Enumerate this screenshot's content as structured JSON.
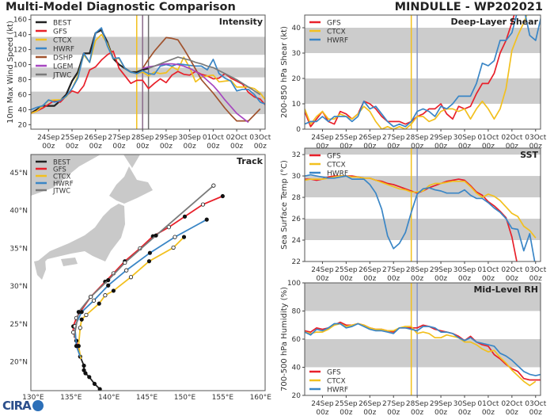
{
  "title": "Multi-Model Diagnostic Comparison",
  "storm": "MINDULLE - WP202021",
  "logo_text": "CIRA",
  "colors": {
    "BEST": "#222222",
    "GFS": "#e8202a",
    "CTCX": "#f2c01e",
    "HWRF": "#3a86c6",
    "DSHP": "#a0522d",
    "LGEM": "#a646c0",
    "JTWC": "#7a7a7a",
    "band": "#cccccc",
    "land": "#c9c9c9"
  },
  "time_axis": {
    "first": "2021-09-23 06z",
    "interval_hours": 6,
    "xlim": [
      "2021-09-23 06z",
      "2021-10-03 05z"
    ],
    "ticks": [
      {
        "date": "2021-09-24 00z",
        "label": "24Sep",
        "sub": "00z"
      },
      {
        "date": "2021-09-25 00z",
        "label": "25Sep",
        "sub": "00z"
      },
      {
        "date": "2021-09-26 00z",
        "label": "26Sep",
        "sub": "00z"
      },
      {
        "date": "2021-09-27 00z",
        "label": "27Sep",
        "sub": "00z"
      },
      {
        "date": "2021-09-28 00z",
        "label": "28Sep",
        "sub": "00z"
      },
      {
        "date": "2021-09-29 00z",
        "label": "29Sep",
        "sub": "00z"
      },
      {
        "date": "2021-09-30 00z",
        "label": "30Sep",
        "sub": "00z"
      },
      {
        "date": "2021-10-01 00z",
        "label": "01Oct",
        "sub": "00z"
      },
      {
        "date": "2021-10-02 00z",
        "label": "02Oct",
        "sub": "00z"
      },
      {
        "date": "2021-10-03 00z",
        "label": "03Oct",
        "sub": "00z"
      }
    ]
  },
  "chart_data": [
    {
      "id": "intensity",
      "type": "line",
      "title": "Intensity",
      "ylabel": "10m Max Wind Speed (kt)",
      "ylim": [
        14,
        166
      ],
      "yticks": [
        20,
        40,
        60,
        80,
        100,
        120,
        140,
        160
      ],
      "bands": [
        [
          34,
          64
        ],
        [
          83,
          96
        ],
        [
          113,
          137
        ]
      ],
      "vlines": [
        {
          "date": "2021-09-27 18z",
          "color": "#f2c01e"
        },
        {
          "date": "2021-09-28 00z",
          "color": "#8a6a8a"
        },
        {
          "date": "2021-09-28 06z",
          "color": "#6a6a6a"
        }
      ],
      "legend": "top-left",
      "series": [
        {
          "name": "BEST",
          "values": [
            35,
            40,
            45,
            45,
            45,
            52,
            60,
            78,
            90,
            115,
            115,
            142,
            146,
            130,
            108,
            100,
            95,
            90,
            90,
            93,
            95
          ]
        },
        {
          "name": "GFS",
          "values": [
            35,
            38,
            42,
            47,
            52,
            50,
            58,
            65,
            62,
            72,
            93,
            97,
            106,
            113,
            118,
            95,
            85,
            75,
            79,
            79,
            68,
            75,
            81,
            76,
            86,
            91,
            87,
            86,
            91,
            87,
            85,
            81,
            82,
            88,
            82,
            78,
            74,
            63,
            57,
            54,
            45,
            44
          ]
        },
        {
          "name": "CTCX",
          "values": [
            35,
            38,
            45,
            52,
            53,
            53,
            57,
            68,
            85,
            113,
            103,
            132,
            140,
            128,
            108,
            108,
            95,
            90,
            88,
            90,
            85,
            90,
            88,
            89,
            97,
            93,
            110,
            96,
            77,
            83,
            85,
            86,
            77,
            78,
            79,
            70,
            70,
            70,
            68,
            62,
            52
          ]
        },
        {
          "name": "HWRF",
          "values": [
            40,
            43,
            45,
            53,
            50,
            52,
            58,
            68,
            82,
            115,
            103,
            142,
            149,
            125,
            108,
            109,
            95,
            90,
            88,
            92,
            88,
            87,
            98,
            100,
            98,
            101,
            100,
            99,
            98,
            98,
            93,
            107,
            88,
            82,
            78,
            65,
            67,
            67,
            60,
            50,
            47,
            46
          ]
        },
        {
          "name": "DSHP",
          "start": "2021-09-28 00z",
          "values": [
            95,
            107,
            118,
            127,
            136,
            135,
            133,
            121,
            108,
            94,
            80,
            71,
            62,
            52,
            42,
            33,
            25,
            25,
            25,
            33,
            41
          ]
        },
        {
          "name": "LGEM",
          "start": "2021-09-28 00z",
          "values": [
            95,
            97,
            98,
            100,
            101,
            101,
            100,
            98,
            95,
            91,
            86,
            79,
            72,
            63,
            53,
            44,
            35,
            29,
            23
          ]
        },
        {
          "name": "JTWC",
          "start": "2021-09-28 06z",
          "values": [
            95,
            98,
            101,
            104,
            107,
            110,
            108,
            106,
            103,
            101,
            98,
            96,
            92,
            88,
            84,
            80,
            75,
            70,
            65,
            60
          ]
        }
      ]
    },
    {
      "id": "shear",
      "type": "line",
      "title": "Deep-Layer Shear",
      "ylabel": "200-850 hPa Shear (kt)",
      "ylim": [
        0,
        45
      ],
      "yticks": [
        0,
        10,
        20,
        30,
        40
      ],
      "bands": [
        [
          10,
          20
        ],
        [
          30,
          40
        ]
      ],
      "vlines": [
        {
          "date": "2021-09-27 18z",
          "color": "#f2c01e"
        },
        {
          "date": "2021-09-28 00z",
          "color": "#8a98c4"
        }
      ],
      "legend": "top-left",
      "series": [
        {
          "name": "GFS",
          "values": [
            7,
            1,
            4,
            7,
            3,
            2,
            7,
            6,
            4,
            6,
            11,
            10,
            8,
            5,
            3,
            3,
            3,
            2,
            3,
            5,
            6,
            8,
            8,
            10,
            6,
            4,
            9,
            8,
            9,
            14,
            18,
            18,
            22,
            30,
            35,
            42,
            50
          ]
        },
        {
          "name": "CTCX",
          "values": [
            8,
            2,
            5,
            7,
            4,
            4,
            6,
            5,
            4,
            6,
            9,
            7,
            3,
            0,
            1,
            0,
            1,
            0,
            2,
            5,
            5,
            3,
            4,
            7,
            8,
            8,
            7,
            8,
            4,
            8,
            11,
            8,
            4,
            8,
            16,
            31,
            37,
            42,
            48
          ]
        },
        {
          "name": "HWRF",
          "values": [
            2,
            3,
            3,
            5,
            3,
            5,
            5,
            5,
            3,
            5,
            11,
            8,
            9,
            6,
            3,
            1,
            2,
            1,
            3,
            7,
            8,
            7,
            5,
            9,
            8,
            10,
            13,
            13,
            13,
            18,
            26,
            25,
            27,
            35,
            35,
            38,
            47,
            48,
            37,
            35,
            45
          ]
        }
      ]
    },
    {
      "id": "sst",
      "type": "line",
      "title": "SST",
      "ylabel": "Sea Surface Temp (°C)",
      "ylim": [
        22,
        32.6
      ],
      "yticks": [
        22,
        24,
        26,
        28,
        30,
        32
      ],
      "bands": [
        [
          24,
          26
        ],
        [
          28,
          30
        ],
        [
          32,
          33
        ]
      ],
      "vlines": [
        {
          "date": "2021-09-27 18z",
          "color": "#f2c01e"
        },
        {
          "date": "2021-09-28 00z",
          "color": "#8a98c4"
        }
      ],
      "legend": "top-left",
      "series": [
        {
          "name": "GFS",
          "values": [
            29.7,
            29.7,
            29.6,
            29.7,
            29.9,
            30,
            30,
            30,
            30,
            29.9,
            29.8,
            29.8,
            29.6,
            29.5,
            29.3,
            29.2,
            29,
            28.8,
            28.6,
            28.4,
            28.6,
            28.9,
            29.1,
            29.3,
            29.5,
            29.6,
            29.7,
            29.6,
            29.1,
            28.5,
            28.2,
            27.6,
            27.2,
            26.7,
            26.1,
            24.3,
            21.5
          ]
        },
        {
          "name": "CTCX",
          "values": [
            29.6,
            29.7,
            29.7,
            29.7,
            29.8,
            29.9,
            30,
            30,
            29.9,
            29.9,
            29.8,
            29.8,
            29.6,
            29.4,
            29.2,
            29,
            28.8,
            28.7,
            28.5,
            28.5,
            28.6,
            29.1,
            29.3,
            29.3,
            29.4,
            29.5,
            29.5,
            29.5,
            29,
            28.4,
            28,
            28.3,
            28.1,
            27.7,
            27.1,
            26.5,
            26.2,
            25.3,
            24.9,
            24.2
          ]
        },
        {
          "name": "HWRF",
          "values": [
            30,
            30.1,
            30,
            29.9,
            29.8,
            29.8,
            29.9,
            30,
            29.7,
            29.7,
            29.7,
            29.2,
            28.4,
            26.9,
            24.4,
            23.2,
            23.7,
            24.7,
            26.6,
            28.3,
            28.8,
            28.9,
            28.7,
            28.6,
            28.4,
            28.4,
            28.4,
            28.7,
            28.2,
            27.9,
            27.9,
            27.5,
            27,
            26.6,
            26,
            25.1,
            25,
            23,
            24.6,
            21.5
          ]
        }
      ]
    },
    {
      "id": "rh",
      "type": "line",
      "title": "Mid-Level RH",
      "ylabel": "700-500 hPa Humidity (%)",
      "ylim": [
        20,
        100
      ],
      "yticks": [
        20,
        40,
        60,
        80,
        100
      ],
      "bands": [
        [
          40,
          60
        ],
        [
          80,
          100
        ]
      ],
      "vlines": [
        {
          "date": "2021-09-27 18z",
          "color": "#f2c01e"
        },
        {
          "date": "2021-09-28 00z",
          "color": "#8a98c4"
        }
      ],
      "legend": "bottom-left",
      "series": [
        {
          "name": "GFS",
          "values": [
            66,
            65,
            68,
            67,
            68,
            70,
            72,
            70,
            70,
            71,
            70,
            68,
            67,
            67,
            66,
            65,
            68,
            68,
            68,
            68,
            70,
            69,
            67,
            66,
            65,
            64,
            62,
            59,
            62,
            58,
            56,
            55,
            49,
            46,
            42,
            39,
            37,
            32,
            31,
            31,
            31
          ]
        },
        {
          "name": "CTCX",
          "values": [
            65,
            64,
            65,
            65,
            67,
            70,
            71,
            69,
            70,
            71,
            70,
            68,
            67,
            67,
            66,
            66,
            68,
            69,
            69,
            64,
            65,
            64,
            61,
            61,
            63,
            62,
            61,
            58,
            58,
            56,
            53,
            51,
            52,
            47,
            43,
            38,
            34,
            30,
            27,
            30
          ]
        },
        {
          "name": "HWRF",
          "values": [
            65,
            63,
            67,
            66,
            68,
            71,
            71,
            68,
            69,
            71,
            69,
            67,
            66,
            66,
            65,
            64,
            68,
            68,
            67,
            66,
            69,
            69,
            68,
            65,
            65,
            64,
            61,
            59,
            61,
            58,
            57,
            56,
            55,
            50,
            48,
            45,
            41,
            37,
            35,
            34,
            35
          ]
        }
      ]
    },
    {
      "id": "track",
      "type": "track",
      "title": "Track",
      "xlim": [
        129.7,
        160.6
      ],
      "ylim": [
        16.2,
        47.4
      ],
      "xticks": [
        {
          "v": 130,
          "label": "130°E"
        },
        {
          "v": 135,
          "label": "135°E"
        },
        {
          "v": 140,
          "label": "140°E"
        },
        {
          "v": 145,
          "label": "145°E"
        },
        {
          "v": 150,
          "label": "150°E"
        },
        {
          "v": 155,
          "label": "155°E"
        },
        {
          "v": 160,
          "label": "160°E"
        }
      ],
      "yticks": [
        {
          "v": 20,
          "label": "20°N"
        },
        {
          "v": 25,
          "label": "25°N"
        },
        {
          "v": 30,
          "label": "30°N"
        },
        {
          "v": 35,
          "label": "35°N"
        },
        {
          "v": 40,
          "label": "40°N"
        },
        {
          "v": 45,
          "label": "45°N"
        }
      ],
      "legend": "top-left",
      "series": [
        {
          "name": "BEST",
          "lon": [
            138.8,
            138.1,
            137.4,
            136.9,
            136.7,
            136.7,
            136.2
          ],
          "lat": [
            16.4,
            17.1,
            18.0,
            18.5,
            18.9,
            19.5,
            20.7
          ]
        },
        {
          "name": "GFS",
          "lon": [
            136.2,
            135.7,
            135.3,
            135.3,
            135.7,
            136.2,
            137.6,
            139.5,
            140.6,
            142.1,
            144.1,
            145.8,
            147.9,
            150.0,
            152.4,
            155.0
          ],
          "lat": [
            20.7,
            22.8,
            23.9,
            24.7,
            25.8,
            26.6,
            28.6,
            30.6,
            31.7,
            33.3,
            35.0,
            36.6,
            37.8,
            39.2,
            40.8,
            41.9
          ]
        },
        {
          "name": "CTCX",
          "lon": [
            136.3,
            136.0,
            136.2,
            136.4,
            137.0,
            138.7,
            139.5,
            140.6,
            142.9,
            145.3,
            148.5,
            149.9
          ],
          "lat": [
            20.4,
            22.1,
            24.5,
            25.6,
            26.2,
            27.7,
            28.8,
            29.4,
            31.2,
            33.3,
            35.1,
            36.5
          ]
        },
        {
          "name": "HWRF",
          "lon": [
            136.2,
            135.7,
            135.5,
            136.4,
            138.0,
            139.9,
            142.3,
            145.4,
            148.7,
            152.9
          ],
          "lat": [
            20.7,
            22.1,
            24.7,
            26.6,
            28.1,
            30.1,
            32.1,
            34.4,
            36.5,
            38.8
          ]
        },
        {
          "name": "JTWC",
          "lon": [
            135.4,
            136.0,
            137.6,
            139.9,
            142.1,
            146.2,
            153.8
          ],
          "lat": [
            23.2,
            26.6,
            28.6,
            30.8,
            33.1,
            36.7,
            43.3
          ]
        }
      ]
    }
  ]
}
